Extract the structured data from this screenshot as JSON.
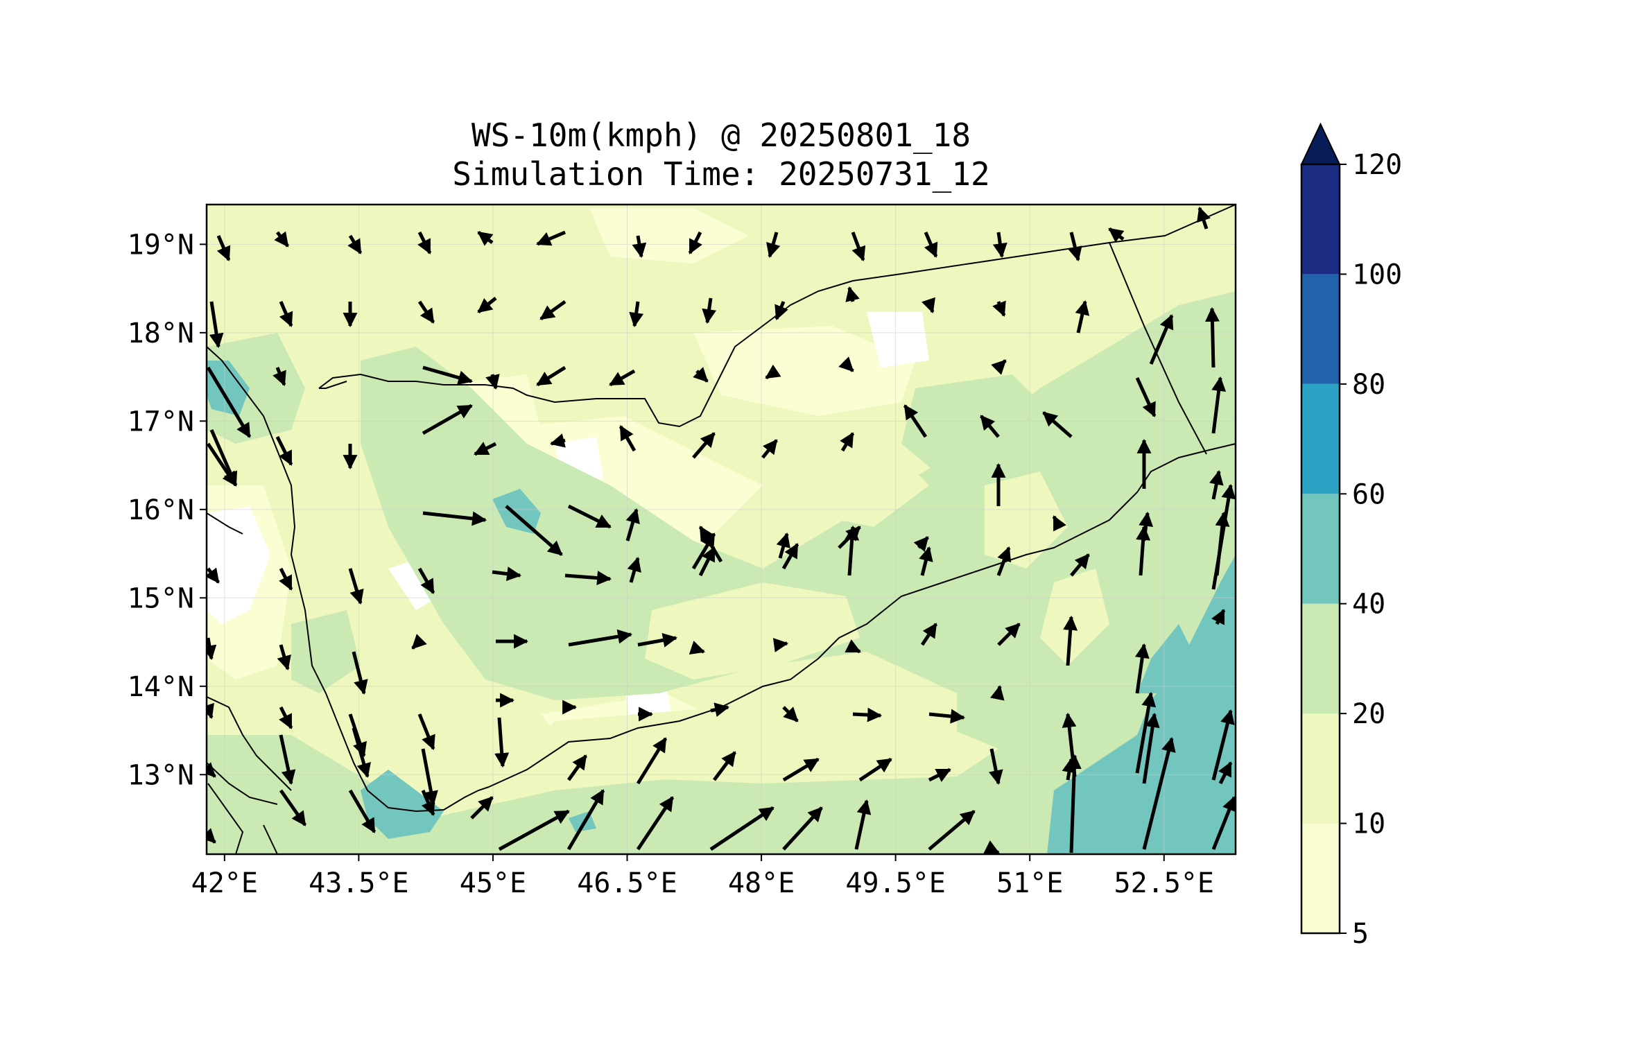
{
  "title": {
    "line1": "WS-10m(kmph) @ 20250801_18",
    "line2": "Simulation Time: 20250731_12"
  },
  "map": {
    "lon_range": [
      41.8,
      53.3
    ],
    "lat_range": [
      12.1,
      19.45
    ],
    "lon_ticks": [
      {
        "value": 42.0,
        "label": "42°E"
      },
      {
        "value": 43.5,
        "label": "43.5°E"
      },
      {
        "value": 45.0,
        "label": "45°E"
      },
      {
        "value": 46.5,
        "label": "46.5°E"
      },
      {
        "value": 48.0,
        "label": "48°E"
      },
      {
        "value": 49.5,
        "label": "49.5°E"
      },
      {
        "value": 51.0,
        "label": "51°E"
      },
      {
        "value": 52.5,
        "label": "52.5°E"
      }
    ],
    "lat_ticks": [
      {
        "value": 19,
        "label": "19°N"
      },
      {
        "value": 18,
        "label": "18°N"
      },
      {
        "value": 17,
        "label": "17°N"
      },
      {
        "value": 16,
        "label": "16°N"
      },
      {
        "value": 15,
        "label": "15°N"
      },
      {
        "value": 14,
        "label": "14°N"
      },
      {
        "value": 13,
        "label": "13°N"
      }
    ],
    "background_color": "#eef7be",
    "land_outline_color": "#000000",
    "wind_arrow_color": "#000000"
  },
  "colorbar": {
    "levels": [
      "5",
      "10",
      "20",
      "40",
      "60",
      "80",
      "100",
      "120"
    ],
    "colors": [
      "#fbfed3",
      "#eef7be",
      "#cbeab3",
      "#73c6bd",
      "#2ca2c4",
      "#2163aa",
      "#1b2c82"
    ],
    "extend_color": "#081d58",
    "extend": "max"
  },
  "chart_data": {
    "type": "heatmap",
    "variable": "WS-10m",
    "units": "kmph",
    "overlay": "wind vectors",
    "wind_samples": [
      {
        "lon": 44.3,
        "lat": 15.9,
        "u": 1.0,
        "v": -0.15
      },
      {
        "lon": 45.6,
        "lat": 15.6,
        "u": 1.0,
        "v": -0.6
      },
      {
        "lon": 47.5,
        "lat": 16.1,
        "u": -0.8,
        "v": 0.4
      },
      {
        "lon": 45.5,
        "lat": 12.5,
        "u": 1.0,
        "v": 0.55
      },
      {
        "lon": 52.5,
        "lat": 12.6,
        "u": 0.3,
        "v": 1.0
      },
      {
        "lon": 51.6,
        "lat": 12.7,
        "u": 0.06,
        "v": 1.0
      },
      {
        "lon": 52.9,
        "lat": 18.0,
        "u": -0.25,
        "v": 1.0
      },
      {
        "lon": 43.5,
        "lat": 13.5,
        "u": 0.1,
        "v": -1.0
      }
    ]
  }
}
